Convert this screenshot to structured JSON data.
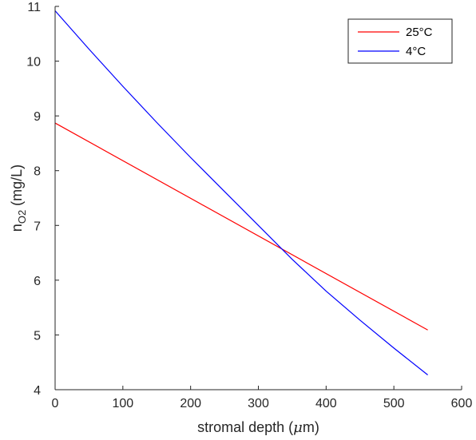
{
  "chart_data": {
    "type": "line",
    "xlabel": "stromal depth (μm)",
    "ylabel": "n_O2 (mg/L)",
    "ylabel_base": "n",
    "ylabel_sub": "O2",
    "ylabel_rest": " (mg/L)",
    "xlabel_main": "stromal depth (",
    "xlabel_unit": "μ",
    "xlabel_end": "m)",
    "xlim": [
      0,
      600
    ],
    "ylim": [
      4,
      11
    ],
    "xticks": [
      0,
      100,
      200,
      300,
      400,
      500,
      600
    ],
    "yticks": [
      4,
      5,
      6,
      7,
      8,
      9,
      10,
      11
    ],
    "grid": false,
    "legend_position": "top-right",
    "series": [
      {
        "name": "25°C",
        "color": "#ff0000",
        "x": [
          0,
          550
        ],
        "y": [
          8.87,
          5.09
        ]
      },
      {
        "name": "4°C",
        "color": "#0000ff",
        "x": [
          0,
          50,
          100,
          150,
          200,
          250,
          300,
          350,
          400,
          450,
          500,
          550
        ],
        "y": [
          10.92,
          10.22,
          9.54,
          8.88,
          8.24,
          7.62,
          7.0,
          6.38,
          5.8,
          5.27,
          4.76,
          4.27
        ]
      }
    ]
  }
}
